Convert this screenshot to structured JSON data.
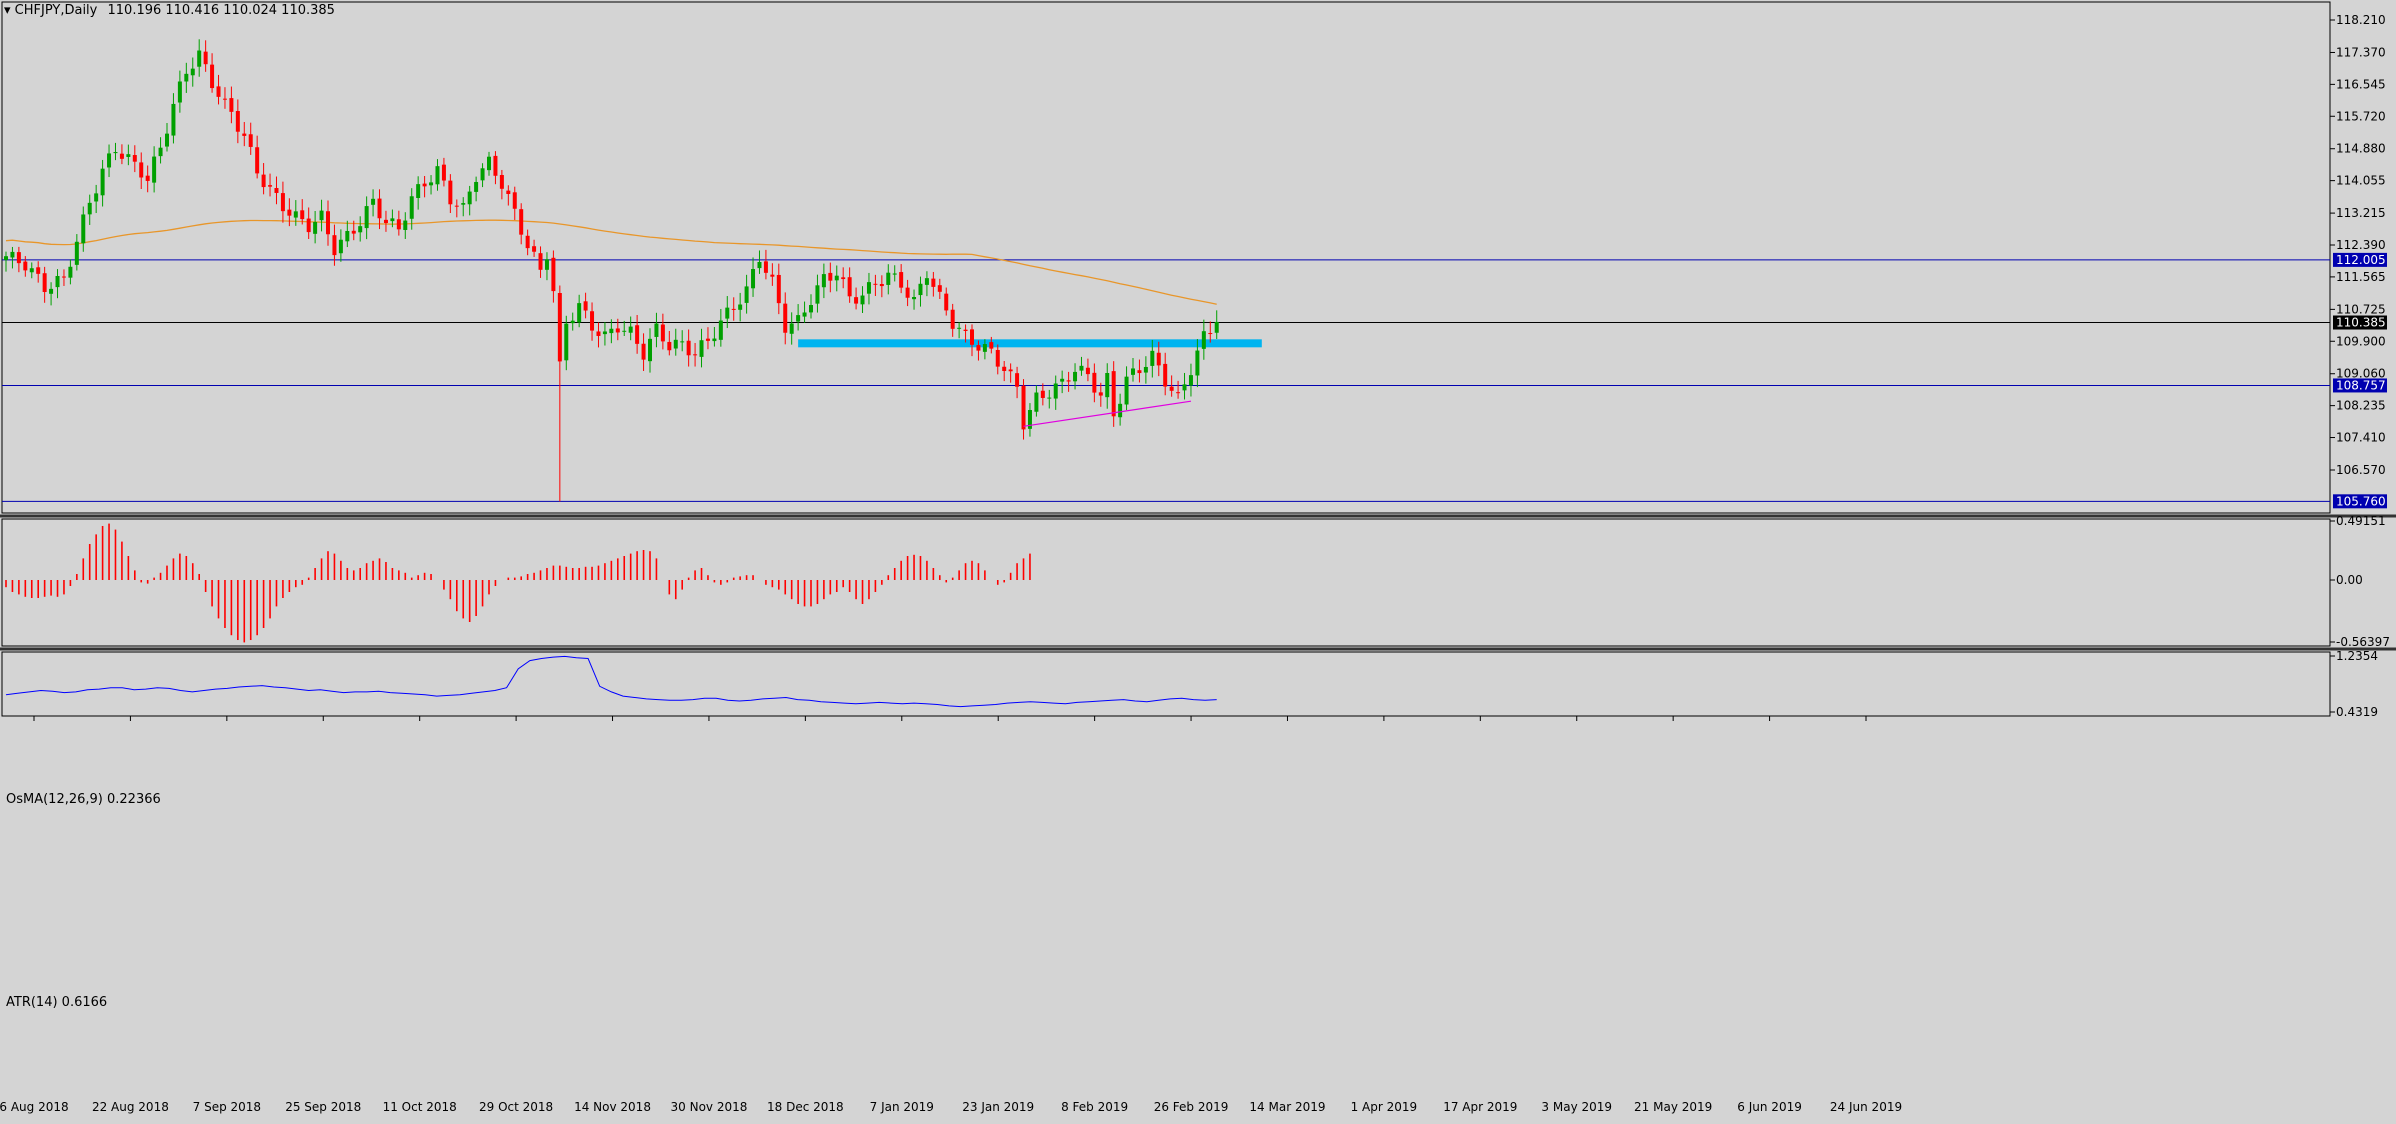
{
  "header": {
    "symbol_label": "CHFJPY,Daily",
    "ohlc": "110.196 110.416 110.024 110.385"
  },
  "price_axis": {
    "ticks": [
      "118.210",
      "117.370",
      "116.545",
      "115.720",
      "114.880",
      "114.055",
      "113.215",
      "112.390",
      "111.565",
      "110.725",
      "109.900",
      "109.060",
      "108.235",
      "107.410",
      "106.570"
    ]
  },
  "horizontal_lines": [
    {
      "label": "112.005",
      "value": 112.005,
      "color": "#0000b0"
    },
    {
      "label": "108.757",
      "value": 108.757,
      "color": "#0000b0"
    },
    {
      "label": "105.760",
      "value": 105.76,
      "color": "#0000b0"
    }
  ],
  "current_price": {
    "label": "110.385",
    "value": 110.385
  },
  "resistance_zone": {
    "from": 109.78,
    "to": 109.95,
    "color": "#00b4f0"
  },
  "support_trendline": {
    "color": "#e000e0"
  },
  "moving_average": {
    "color": "#e8962a"
  },
  "time_axis": {
    "labels": [
      "6 Aug 2018",
      "22 Aug 2018",
      "7 Sep 2018",
      "25 Sep 2018",
      "11 Oct 2018",
      "29 Oct 2018",
      "14 Nov 2018",
      "30 Nov 2018",
      "18 Dec 2018",
      "7 Jan 2019",
      "23 Jan 2019",
      "8 Feb 2019",
      "26 Feb 2019",
      "14 Mar 2019",
      "1 Apr 2019",
      "17 Apr 2019",
      "3 May 2019",
      "21 May 2019",
      "6 Jun 2019",
      "24 Jun 2019"
    ]
  },
  "osma": {
    "label": "OsMA(12,26,9) 0.22366",
    "axis_ticks": [
      "0.49151",
      "0.00",
      "-0.56397"
    ],
    "color": "#ff0000"
  },
  "atr": {
    "label": "ATR(14) 0.6166",
    "axis_ticks": [
      "1.2354",
      "0.4319"
    ],
    "color": "#0000ff"
  },
  "colors": {
    "bull": "#00a000",
    "bear": "#ff0000",
    "background": "#d4d4d4"
  },
  "chart_data": {
    "type": "candlestick",
    "symbol": "CHFJPY",
    "timeframe": "Daily",
    "ylim": [
      105.5,
      118.5
    ],
    "key_levels": [
      112.005,
      108.757,
      105.76
    ],
    "anchors": [
      [
        0,
        112.1
      ],
      [
        3,
        111.9
      ],
      [
        6,
        111.3
      ],
      [
        9,
        111.5
      ],
      [
        11,
        112.5
      ],
      [
        13,
        113.5
      ],
      [
        15,
        114.3
      ],
      [
        17,
        114.9
      ],
      [
        19,
        114.6
      ],
      [
        21,
        114.3
      ],
      [
        22,
        114.1
      ],
      [
        24,
        114.9
      ],
      [
        26,
        116.0
      ],
      [
        28,
        116.9
      ],
      [
        30,
        117.3
      ],
      [
        32,
        116.6
      ],
      [
        34,
        116.0
      ],
      [
        35,
        115.8
      ],
      [
        37,
        115.2
      ],
      [
        39,
        114.3
      ],
      [
        41,
        113.8
      ],
      [
        43,
        113.4
      ],
      [
        45,
        113.1
      ],
      [
        47,
        112.9
      ],
      [
        49,
        113.1
      ],
      [
        51,
        112.3
      ],
      [
        53,
        112.6
      ],
      [
        55,
        113.0
      ],
      [
        57,
        113.5
      ],
      [
        59,
        113.0
      ],
      [
        61,
        112.8
      ],
      [
        63,
        113.6
      ],
      [
        65,
        114.0
      ],
      [
        67,
        114.3
      ],
      [
        69,
        113.6
      ],
      [
        71,
        113.3
      ],
      [
        73,
        114.2
      ],
      [
        75,
        114.5
      ],
      [
        77,
        114.0
      ],
      [
        79,
        113.2
      ],
      [
        81,
        112.4
      ],
      [
        83,
        111.7
      ],
      [
        84,
        112.2
      ],
      [
        85,
        111.2
      ],
      [
        86,
        109.2
      ],
      [
        87,
        110.4
      ],
      [
        89,
        110.8
      ],
      [
        91,
        110.3
      ],
      [
        93,
        110.0
      ],
      [
        95,
        110.3
      ],
      [
        97,
        110.1
      ],
      [
        99,
        109.6
      ],
      [
        101,
        110.2
      ],
      [
        103,
        109.8
      ],
      [
        105,
        109.8
      ],
      [
        107,
        109.6
      ],
      [
        109,
        109.9
      ],
      [
        111,
        110.4
      ],
      [
        113,
        110.8
      ],
      [
        115,
        111.2
      ],
      [
        117,
        112.1
      ],
      [
        119,
        111.4
      ],
      [
        121,
        110.3
      ],
      [
        123,
        110.4
      ],
      [
        125,
        111.0
      ],
      [
        127,
        111.5
      ],
      [
        129,
        111.7
      ],
      [
        131,
        111.0
      ],
      [
        133,
        111.1
      ],
      [
        135,
        111.4
      ],
      [
        137,
        111.6
      ],
      [
        139,
        111.4
      ],
      [
        141,
        110.9
      ],
      [
        143,
        111.7
      ],
      [
        145,
        111.0
      ],
      [
        147,
        110.4
      ],
      [
        149,
        110.0
      ],
      [
        151,
        109.8
      ],
      [
        153,
        109.6
      ],
      [
        155,
        109.2
      ],
      [
        157,
        108.7
      ],
      [
        158,
        107.8
      ],
      [
        160,
        108.4
      ],
      [
        162,
        108.6
      ],
      [
        164,
        108.8
      ],
      [
        166,
        109.2
      ],
      [
        168,
        109.0
      ],
      [
        170,
        108.5
      ],
      [
        171,
        108.9
      ],
      [
        172,
        108.0
      ],
      [
        174,
        108.9
      ],
      [
        176,
        109.2
      ],
      [
        178,
        109.5
      ],
      [
        180,
        108.9
      ],
      [
        182,
        108.4
      ],
      [
        184,
        109.2
      ],
      [
        186,
        110.0
      ],
      [
        188,
        110.4
      ]
    ],
    "osma": [
      -0.06,
      -0.1,
      -0.12,
      -0.14,
      -0.15,
      -0.15,
      -0.14,
      -0.13,
      -0.14,
      -0.12,
      -0.05,
      0.05,
      0.18,
      0.3,
      0.38,
      0.45,
      0.47,
      0.42,
      0.32,
      0.2,
      0.08,
      -0.02,
      -0.03,
      0.02,
      0.06,
      0.12,
      0.18,
      0.22,
      0.2,
      0.14,
      0.05,
      -0.1,
      -0.22,
      -0.32,
      -0.4,
      -0.46,
      -0.5,
      -0.52,
      -0.5,
      -0.46,
      -0.4,
      -0.32,
      -0.22,
      -0.15,
      -0.1,
      -0.06,
      -0.04,
      0.02,
      0.1,
      0.18,
      0.24,
      0.22,
      0.16,
      0.1,
      0.08,
      0.1,
      0.14,
      0.16,
      0.18,
      0.15,
      0.1,
      0.08,
      0.06,
      0.02,
      0.04,
      0.06,
      0.05,
      0.0,
      -0.08,
      -0.16,
      -0.26,
      -0.32,
      -0.35,
      -0.3,
      -0.22,
      -0.12,
      -0.05,
      0.0,
      0.02,
      0.02,
      0.03,
      0.05,
      0.06,
      0.08,
      0.1,
      0.12,
      0.12,
      0.11,
      0.1,
      0.1,
      0.11,
      0.11,
      0.12,
      0.14,
      0.16,
      0.18,
      0.2,
      0.22,
      0.24,
      0.25,
      0.24,
      0.18,
      0.0,
      -0.12,
      -0.16,
      -0.08,
      0.02,
      0.08,
      0.1,
      0.04,
      -0.02,
      -0.04,
      -0.02,
      0.02,
      0.03,
      0.04,
      0.04,
      0.0,
      -0.04,
      -0.06,
      -0.08,
      -0.12,
      -0.16,
      -0.2,
      -0.22,
      -0.22,
      -0.2,
      -0.16,
      -0.12,
      -0.1,
      -0.06,
      -0.1,
      -0.16,
      -0.2,
      -0.16,
      -0.1,
      -0.04,
      0.04,
      0.1,
      0.16,
      0.2,
      0.21,
      0.2,
      0.16,
      0.1,
      0.04,
      -0.02,
      0.02,
      0.08,
      0.14,
      0.16,
      0.14,
      0.08,
      0.0,
      -0.04,
      -0.02,
      0.06,
      0.14,
      0.18,
      0.22
    ],
    "atr": [
      0.68,
      0.7,
      0.72,
      0.74,
      0.73,
      0.71,
      0.72,
      0.75,
      0.76,
      0.78,
      0.78,
      0.75,
      0.76,
      0.78,
      0.77,
      0.74,
      0.72,
      0.74,
      0.76,
      0.77,
      0.79,
      0.8,
      0.81,
      0.79,
      0.78,
      0.76,
      0.74,
      0.75,
      0.73,
      0.71,
      0.72,
      0.72,
      0.73,
      0.71,
      0.7,
      0.69,
      0.68,
      0.66,
      0.67,
      0.68,
      0.7,
      0.72,
      0.74,
      0.78,
      1.05,
      1.17,
      1.2,
      1.22,
      1.23,
      1.21,
      1.2,
      0.8,
      0.72,
      0.66,
      0.64,
      0.62,
      0.61,
      0.6,
      0.6,
      0.61,
      0.63,
      0.63,
      0.6,
      0.59,
      0.6,
      0.62,
      0.63,
      0.64,
      0.61,
      0.6,
      0.58,
      0.57,
      0.56,
      0.55,
      0.56,
      0.57,
      0.56,
      0.55,
      0.56,
      0.55,
      0.54,
      0.52,
      0.51,
      0.52,
      0.53,
      0.54,
      0.56,
      0.57,
      0.58,
      0.57,
      0.56,
      0.55,
      0.57,
      0.58,
      0.59,
      0.6,
      0.61,
      0.59,
      0.58,
      0.6,
      0.62,
      0.63,
      0.61,
      0.6,
      0.61
    ]
  }
}
